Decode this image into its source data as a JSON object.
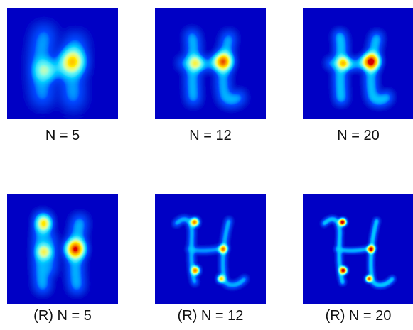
{
  "colors": {
    "background": "#00008f",
    "colormap": [
      "#00008f",
      "#0010ff",
      "#00a0ff",
      "#20f0e0",
      "#b0ff50",
      "#ffe000",
      "#ff6000",
      "#c00000",
      "#800000"
    ]
  },
  "panels": [
    {
      "label": "N = 5",
      "glyph": "H-blobby",
      "blur": 9,
      "intensity": 0.95
    },
    {
      "label": "N = 12",
      "glyph": "H-cursive",
      "blur": 6,
      "intensity": 1.0
    },
    {
      "label": "N = 20",
      "glyph": "H-cursive",
      "blur": 5,
      "intensity": 1.0
    },
    {
      "label": "(R) N = 5",
      "glyph": "H-reconstructed",
      "blur": 6,
      "intensity": 0.95
    },
    {
      "label": "(R) N = 12",
      "glyph": "H-cursive-thin",
      "blur": 3,
      "intensity": 1.0
    },
    {
      "label": "(R) N = 20",
      "glyph": "H-cursive-thin",
      "blur": 2,
      "intensity": 1.0
    }
  ]
}
